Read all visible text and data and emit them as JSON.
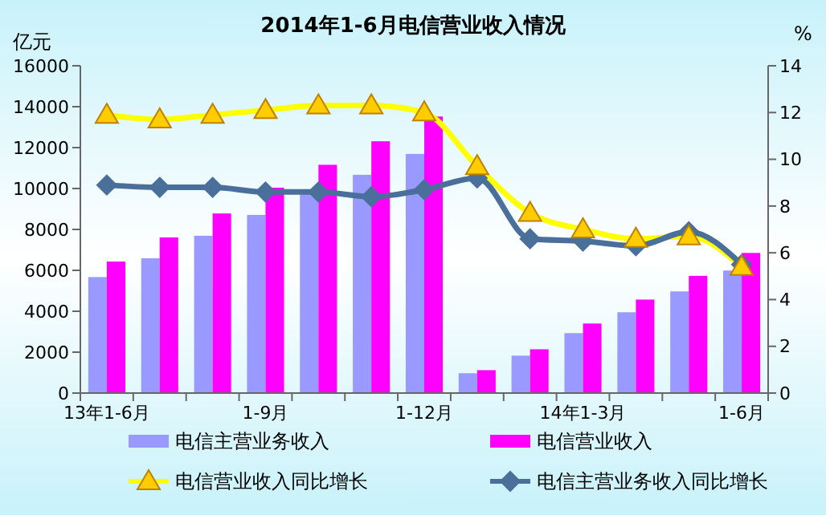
{
  "chart_data": {
    "type": "bar",
    "title": "2014年1-6月电信营业收入情况",
    "ylabel": "亿元",
    "y2label": "%",
    "categories": [
      "13年1-6月",
      null,
      null,
      "1-9月",
      null,
      null,
      "1-12月",
      null,
      null,
      "14年1-3月",
      null,
      null,
      "1-6月"
    ],
    "series": [
      {
        "name": "电信主营业务收入",
        "color": "#9999ff",
        "values": [
          5670,
          6590,
          7690,
          8710,
          9800,
          10670,
          11690,
          970,
          1830,
          2930,
          3950,
          4970,
          5990
        ]
      },
      {
        "name": "电信营业收入",
        "color": "#ff00ff",
        "values": [
          6430,
          7610,
          8780,
          10040,
          11160,
          12310,
          13520,
          1120,
          2140,
          3400,
          4570,
          5730,
          6850
        ]
      },
      {
        "name": "电信营业收入同比增长",
        "type": "line",
        "axis": "y2",
        "color": "#ffff00",
        "marker": "triangle",
        "values": [
          11.9,
          11.7,
          11.9,
          12.1,
          12.3,
          12.3,
          12.0,
          9.7,
          7.7,
          7.0,
          6.6,
          6.7,
          5.4
        ]
      },
      {
        "name": "电信主营业务收入同比增长",
        "type": "line",
        "axis": "y2",
        "color": "#4a6f9a",
        "marker": "diamond",
        "values": [
          8.9,
          8.8,
          8.8,
          8.6,
          8.6,
          8.4,
          8.7,
          9.2,
          6.6,
          6.5,
          6.3,
          6.9,
          5.5
        ]
      }
    ],
    "ylim": [
      0,
      16000
    ],
    "yticks": [
      0,
      2000,
      4000,
      6000,
      8000,
      10000,
      12000,
      14000,
      16000
    ],
    "y2lim": [
      0,
      14
    ],
    "y2ticks": [
      0,
      2,
      4,
      6,
      8,
      10,
      12,
      14
    ],
    "legend": "bottom",
    "grid": false
  }
}
